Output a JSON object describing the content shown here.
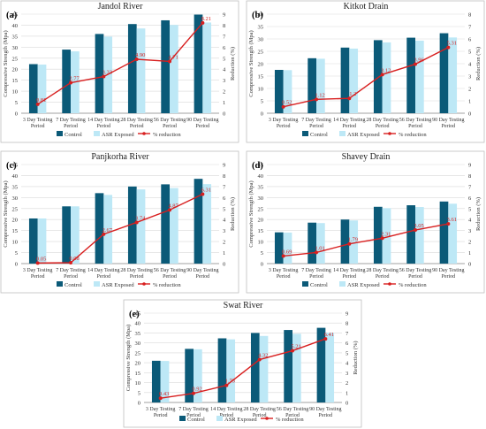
{
  "colors": {
    "control": "#0b5a78",
    "asr": "#bde8f6",
    "reduction": "#d81f1f",
    "grid": "#d9d9d9",
    "axis": "#888888",
    "text": "#333333"
  },
  "chart_data": [
    {
      "type": "bar",
      "panel_label": "(a)",
      "title": "Jandol River",
      "categories": [
        [
          "3 Day Testing",
          "Period"
        ],
        [
          "7 Day Testing",
          "Period"
        ],
        [
          "14 Day Testing",
          "Period"
        ],
        [
          "28 Day Testing",
          "Period"
        ],
        [
          "56 Day Testing",
          "Period"
        ],
        [
          "90 Day Testing",
          "Period"
        ]
      ],
      "ylabel": "Compressive Strength (Mpa)",
      "y2label": "Reduction (%)",
      "ylim": [
        0,
        45
      ],
      "yticks": [
        0,
        5,
        10,
        15,
        20,
        25,
        30,
        35,
        40,
        45
      ],
      "y2lim": [
        0,
        9
      ],
      "y2ticks": [
        0,
        1,
        2,
        3,
        4,
        5,
        6,
        7,
        8,
        9
      ],
      "grid": true,
      "legend_position": "bottom",
      "series": [
        {
          "name": "Control",
          "kind": "bar",
          "axis": "left",
          "values": [
            22.3,
            28.9,
            36.0,
            40.5,
            42.2,
            44.8
          ]
        },
        {
          "name": "ASR Exposed",
          "kind": "bar",
          "axis": "left",
          "values": [
            22.1,
            28.1,
            34.8,
            38.5,
            40.1,
            41.2
          ]
        },
        {
          "name": "% reduction",
          "kind": "line",
          "axis": "right",
          "values": [
            0.81,
            2.77,
            3.33,
            4.9,
            4.71,
            8.21
          ],
          "labels": [
            "0.81",
            "2.77",
            "3.33",
            "4.90",
            "4.71",
            "8.21"
          ]
        }
      ]
    },
    {
      "type": "bar",
      "panel_label": "(b)",
      "title": "Kitkot Drain",
      "categories": [
        [
          "3 Day Testing",
          "Period"
        ],
        [
          "7 Day Testing",
          "Period"
        ],
        [
          "14 Day Testing",
          "Period"
        ],
        [
          "28 Day Testing",
          "Period"
        ],
        [
          "56 Day Testing",
          "Period"
        ],
        [
          "90 Day Testing",
          "Period"
        ]
      ],
      "ylabel": "Compressive Strength (Mpa)",
      "y2label": "Reduction (%)",
      "ylim": [
        0,
        40
      ],
      "yticks": [
        0,
        5,
        10,
        15,
        20,
        25,
        30,
        35,
        40
      ],
      "y2lim": [
        0,
        8
      ],
      "y2ticks": [
        0,
        1,
        2,
        3,
        4,
        5,
        6,
        7,
        8
      ],
      "grid": true,
      "legend_position": "bottom",
      "series": [
        {
          "name": "Control",
          "kind": "bar",
          "axis": "left",
          "values": [
            17.5,
            22.2,
            26.5,
            29.5,
            30.5,
            32.3
          ]
        },
        {
          "name": "ASR Exposed",
          "kind": "bar",
          "axis": "left",
          "values": [
            17.4,
            22.0,
            26.1,
            28.6,
            29.3,
            30.6
          ]
        },
        {
          "name": "% reduction",
          "kind": "line",
          "axis": "right",
          "values": [
            0.52,
            1.12,
            1.2,
            3.12,
            3.96,
            5.31
          ],
          "labels": [
            "0.52",
            "1.12",
            "1.2",
            "3.12",
            "3.96",
            "5.31"
          ]
        }
      ]
    },
    {
      "type": "bar",
      "panel_label": "(c)",
      "title": "Panjkorha River",
      "categories": [
        [
          "3 Day Testing",
          "Period"
        ],
        [
          "7 Day Testing",
          "Period"
        ],
        [
          "14 Day Testing",
          "Period"
        ],
        [
          "28 Day Testing",
          "Period"
        ],
        [
          "56 Day Testing",
          "Period"
        ],
        [
          "90 Day Testing",
          "Period"
        ]
      ],
      "ylabel": "Compressive Strength (Mpa)",
      "y2label": "Reduction (%)",
      "ylim": [
        0,
        45
      ],
      "yticks": [
        0,
        5,
        10,
        15,
        20,
        25,
        30,
        35,
        40,
        45
      ],
      "y2lim": [
        0,
        9
      ],
      "y2ticks": [
        0,
        1,
        2,
        3,
        4,
        5,
        6,
        7,
        8,
        9
      ],
      "grid": true,
      "legend_position": "bottom",
      "series": [
        {
          "name": "Control",
          "kind": "bar",
          "axis": "left",
          "values": [
            20.5,
            26.0,
            32.0,
            35.0,
            36.0,
            38.5
          ]
        },
        {
          "name": "ASR Exposed",
          "kind": "bar",
          "axis": "left",
          "values": [
            20.5,
            26.0,
            31.2,
            33.7,
            34.3,
            36.1
          ]
        },
        {
          "name": "% reduction",
          "kind": "line",
          "axis": "right",
          "values": [
            0.05,
            0.08,
            2.67,
            3.74,
            4.87,
            6.31
          ],
          "labels": [
            "0.05",
            "0.08",
            "2.67",
            "3.74",
            "4.87",
            "6.31"
          ]
        }
      ]
    },
    {
      "type": "bar",
      "panel_label": "(d)",
      "title": "Shavey Drain",
      "categories": [
        [
          "3 Day Testing",
          "Period"
        ],
        [
          "7 Day Testing",
          "Period"
        ],
        [
          "14 Day Testing",
          "Period"
        ],
        [
          "28 Day Testing",
          "Period"
        ],
        [
          "56 Day Testing",
          "Period"
        ],
        [
          "90 Day Testing",
          "Period"
        ]
      ],
      "ylabel": "Compressive Strength (Mpa)",
      "y2label": "Reduction (%)",
      "ylim": [
        0,
        45
      ],
      "yticks": [
        0,
        5,
        10,
        15,
        20,
        25,
        30,
        35,
        40,
        45
      ],
      "y2lim": [
        0,
        9
      ],
      "y2ticks": [
        0,
        1,
        2,
        3,
        4,
        5,
        6,
        7,
        8,
        9
      ],
      "grid": true,
      "legend_position": "bottom",
      "series": [
        {
          "name": "Control",
          "kind": "bar",
          "axis": "left",
          "values": [
            14.2,
            18.6,
            20.0,
            25.8,
            26.5,
            28.2
          ]
        },
        {
          "name": "ASR Exposed",
          "kind": "bar",
          "axis": "left",
          "values": [
            14.1,
            18.4,
            19.6,
            25.2,
            25.7,
            27.2
          ]
        },
        {
          "name": "% reduction",
          "kind": "line",
          "axis": "right",
          "values": [
            0.69,
            1.01,
            1.79,
            2.31,
            3.05,
            3.61
          ],
          "labels": [
            "0.69",
            "1.01",
            "1.79",
            "2.31",
            "3.05",
            "3.61"
          ]
        }
      ]
    },
    {
      "type": "bar",
      "panel_label": "(e)",
      "title": "Swat River",
      "categories": [
        [
          "3 Day Testing",
          "Period"
        ],
        [
          "7 Day Testing",
          "Period"
        ],
        [
          "14 Day Testing",
          "Period"
        ],
        [
          "28 Day Testing",
          "Period"
        ],
        [
          "56 Day Testing",
          "Period"
        ],
        [
          "90 Day Testing",
          "Period"
        ]
      ],
      "ylabel": "Compressive Strength (Mpa)",
      "y2label": "Reduction (%)",
      "ylim": [
        0,
        45
      ],
      "yticks": [
        0,
        5,
        10,
        15,
        20,
        25,
        30,
        35,
        40,
        45
      ],
      "y2lim": [
        0,
        9
      ],
      "y2ticks": [
        0,
        1,
        2,
        3,
        4,
        5,
        6,
        7,
        8,
        9
      ],
      "grid": true,
      "legend_position": "bottom",
      "series": [
        {
          "name": "Control",
          "kind": "bar",
          "axis": "left",
          "values": [
            21.0,
            27.0,
            32.3,
            35.0,
            36.5,
            37.6
          ]
        },
        {
          "name": "ASR Exposed",
          "kind": "bar",
          "axis": "left",
          "values": [
            20.9,
            26.8,
            31.8,
            33.5,
            34.6,
            35.2
          ]
        },
        {
          "name": "% reduction",
          "kind": "line",
          "axis": "right",
          "values": [
            0.43,
            0.92,
            1.73,
            4.32,
            5.21,
            6.41
          ],
          "labels": [
            "0.43",
            "0.92",
            "1.73",
            "4.32",
            "5.21",
            "6.41"
          ]
        }
      ]
    }
  ]
}
